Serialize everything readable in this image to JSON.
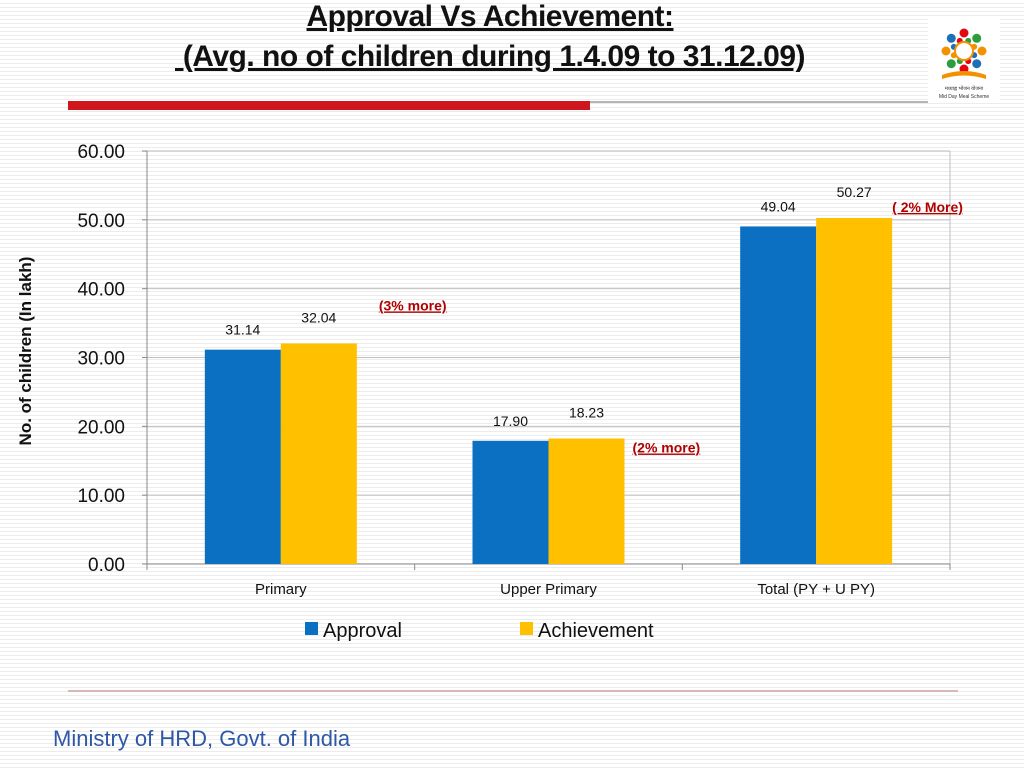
{
  "slide": {
    "title_line1": "Approval Vs Achievement:",
    "title_line2": " (Avg. no of children during 1.4.09 to 31.12.09)",
    "logo_text_line1": "मध्याह्न भोजन योजना",
    "logo_text_line2": "Mid Day Meal Scheme",
    "footer": "Ministry of HRD, Govt. of India"
  },
  "colors": {
    "approval": "#0b70c2",
    "achievement": "#ffc000",
    "annotation": "#b00000",
    "accent_rule": "#d0161d"
  },
  "chart_data": {
    "type": "bar",
    "title": "",
    "xlabel": "",
    "ylabel": "No. of children (In lakh)",
    "ylim": [
      0,
      60
    ],
    "yticks": [
      "0.00",
      "10.00",
      "20.00",
      "30.00",
      "40.00",
      "50.00",
      "60.00"
    ],
    "grid": true,
    "legend_position": "bottom",
    "categories": [
      "Primary",
      "Upper Primary",
      "Total (PY + U PY)"
    ],
    "series": [
      {
        "name": "Approval",
        "values": [
          31.14,
          17.9,
          49.04
        ],
        "labels": [
          "31.14",
          "17.90",
          "49.04"
        ]
      },
      {
        "name": "Achievement",
        "values": [
          32.04,
          18.23,
          50.27
        ],
        "labels": [
          "32.04",
          "18.23",
          "50.27"
        ]
      }
    ],
    "annotations": [
      "(3%  more)",
      "(2% more)",
      "( 2% More)"
    ]
  }
}
